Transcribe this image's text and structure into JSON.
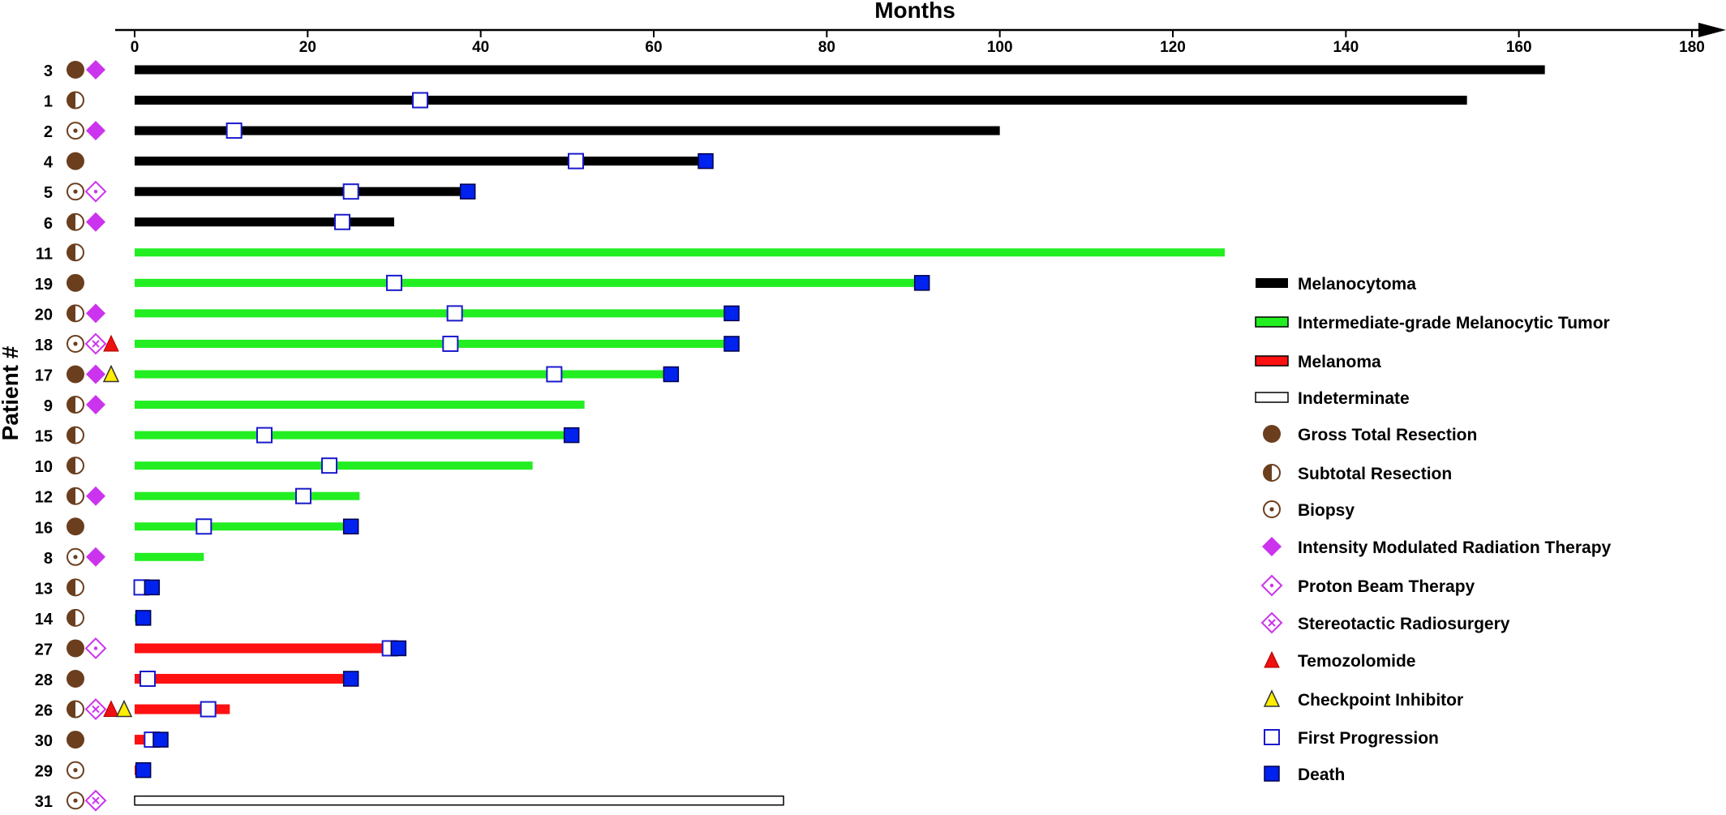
{
  "chart_data": {
    "type": "swimmer",
    "title": "",
    "xlabel": "Months",
    "ylabel": "Patient #",
    "xlim": [
      0,
      180
    ],
    "xticks": [
      "0",
      "20",
      "40",
      "60",
      "80",
      "100",
      "120",
      "140",
      "160",
      "180"
    ],
    "legend_position": "right",
    "colors": {
      "melanocytoma": "#000000",
      "intermediate": "#22ee22",
      "melanoma": "#ff1111",
      "indeterminate": "#ffffff",
      "resection": "#6b3e1e",
      "radiation": "#cc33ee",
      "temozolomide": "#ee1111",
      "checkpoint": "#ffee00",
      "progression": "#1a1acc",
      "death": "#0022ee"
    },
    "legend": [
      {
        "key": "melanocytoma",
        "label": "Melanocytoma",
        "symbol": "bar"
      },
      {
        "key": "intermediate",
        "label": "Intermediate-grade Melanocytic Tumor",
        "symbol": "bar"
      },
      {
        "key": "melanoma",
        "label": "Melanoma",
        "symbol": "bar"
      },
      {
        "key": "indeterminate",
        "label": "Indeterminate",
        "symbol": "bar"
      },
      {
        "key": "gtr",
        "label": "Gross Total Resection",
        "symbol": "gtr"
      },
      {
        "key": "str",
        "label": "Subtotal Resection",
        "symbol": "str"
      },
      {
        "key": "biopsy",
        "label": "Biopsy",
        "symbol": "biopsy"
      },
      {
        "key": "imrt",
        "label": "Intensity Modulated Radiation Therapy",
        "symbol": "imrt"
      },
      {
        "key": "pbt",
        "label": "Proton Beam Therapy",
        "symbol": "pbt"
      },
      {
        "key": "srs",
        "label": "Stereotactic Radiosurgery",
        "symbol": "srs"
      },
      {
        "key": "tmz",
        "label": "Temozolomide",
        "symbol": "tmz"
      },
      {
        "key": "ci",
        "label": "Checkpoint Inhibitor",
        "symbol": "ci"
      },
      {
        "key": "prog",
        "label": "First Progression",
        "symbol": "prog"
      },
      {
        "key": "death",
        "label": "Death",
        "symbol": "death"
      }
    ],
    "patients": [
      {
        "id": "3",
        "type": "melanocytoma",
        "months": 163,
        "surgery": "gtr",
        "radiation": "imrt",
        "systemic": [],
        "progression": null,
        "death": null
      },
      {
        "id": "1",
        "type": "melanocytoma",
        "months": 154,
        "surgery": "str",
        "radiation": null,
        "systemic": [],
        "progression": 33,
        "death": null
      },
      {
        "id": "2",
        "type": "melanocytoma",
        "months": 100,
        "surgery": "biopsy",
        "radiation": "imrt",
        "systemic": [],
        "progression": 11.5,
        "death": null
      },
      {
        "id": "4",
        "type": "melanocytoma",
        "months": 66,
        "surgery": "gtr",
        "radiation": null,
        "systemic": [],
        "progression": 51,
        "death": 66
      },
      {
        "id": "5",
        "type": "melanocytoma",
        "months": 38.5,
        "surgery": "biopsy",
        "radiation": "pbt",
        "systemic": [],
        "progression": 25,
        "death": 38.5
      },
      {
        "id": "6",
        "type": "melanocytoma",
        "months": 30,
        "surgery": "str",
        "radiation": "imrt",
        "systemic": [],
        "progression": 24,
        "death": null
      },
      {
        "id": "11",
        "type": "intermediate",
        "months": 126,
        "surgery": "str",
        "radiation": null,
        "systemic": [],
        "progression": null,
        "death": null
      },
      {
        "id": "19",
        "type": "intermediate",
        "months": 91,
        "surgery": "gtr",
        "radiation": null,
        "systemic": [],
        "progression": 30,
        "death": 91
      },
      {
        "id": "20",
        "type": "intermediate",
        "months": 69,
        "surgery": "str",
        "radiation": "imrt",
        "systemic": [],
        "progression": 37,
        "death": 69
      },
      {
        "id": "18",
        "type": "intermediate",
        "months": 69,
        "surgery": "biopsy",
        "radiation": "srs",
        "systemic": [
          "tmz"
        ],
        "progression": 36.5,
        "death": 69
      },
      {
        "id": "17",
        "type": "intermediate",
        "months": 62,
        "surgery": "gtr",
        "radiation": "imrt",
        "systemic": [
          "ci"
        ],
        "progression": 48.5,
        "death": 62
      },
      {
        "id": "9",
        "type": "intermediate",
        "months": 52,
        "surgery": "str",
        "radiation": "imrt",
        "systemic": [],
        "progression": null,
        "death": null
      },
      {
        "id": "15",
        "type": "intermediate",
        "months": 50.5,
        "surgery": "str",
        "radiation": null,
        "systemic": [],
        "progression": 15,
        "death": 50.5
      },
      {
        "id": "10",
        "type": "intermediate",
        "months": 46,
        "surgery": "str",
        "radiation": null,
        "systemic": [],
        "progression": 22.5,
        "death": null
      },
      {
        "id": "12",
        "type": "intermediate",
        "months": 26,
        "surgery": "str",
        "radiation": "imrt",
        "systemic": [],
        "progression": 19.5,
        "death": null
      },
      {
        "id": "16",
        "type": "intermediate",
        "months": 25,
        "surgery": "gtr",
        "radiation": null,
        "systemic": [],
        "progression": 8,
        "death": 25
      },
      {
        "id": "8",
        "type": "intermediate",
        "months": 8,
        "surgery": "biopsy",
        "radiation": "imrt",
        "systemic": [],
        "progression": null,
        "death": null
      },
      {
        "id": "13",
        "type": "intermediate",
        "months": 2,
        "surgery": "str",
        "radiation": null,
        "systemic": [],
        "progression": 0.8,
        "death": 2
      },
      {
        "id": "14",
        "type": "intermediate",
        "months": 1,
        "surgery": "str",
        "radiation": null,
        "systemic": [],
        "progression": null,
        "death": 1
      },
      {
        "id": "27",
        "type": "melanoma",
        "months": 30.5,
        "surgery": "gtr",
        "radiation": "pbt",
        "systemic": [],
        "progression": 29.5,
        "death": 30.5
      },
      {
        "id": "28",
        "type": "melanoma",
        "months": 25,
        "surgery": "gtr",
        "radiation": null,
        "systemic": [],
        "progression": 1.5,
        "death": 25
      },
      {
        "id": "26",
        "type": "melanoma",
        "months": 11,
        "surgery": "str",
        "radiation": "srs",
        "systemic": [
          "tmz",
          "ci"
        ],
        "progression": 8.5,
        "death": null
      },
      {
        "id": "30",
        "type": "melanoma",
        "months": 3,
        "surgery": "gtr",
        "radiation": null,
        "systemic": [],
        "progression": 2,
        "death": 3
      },
      {
        "id": "29",
        "type": "melanoma",
        "months": 1,
        "surgery": "biopsy",
        "radiation": null,
        "systemic": [],
        "progression": null,
        "death": 1
      },
      {
        "id": "31",
        "type": "indeterminate",
        "months": 75,
        "surgery": "biopsy",
        "radiation": "srs",
        "systemic": [],
        "progression": null,
        "death": null
      }
    ]
  }
}
